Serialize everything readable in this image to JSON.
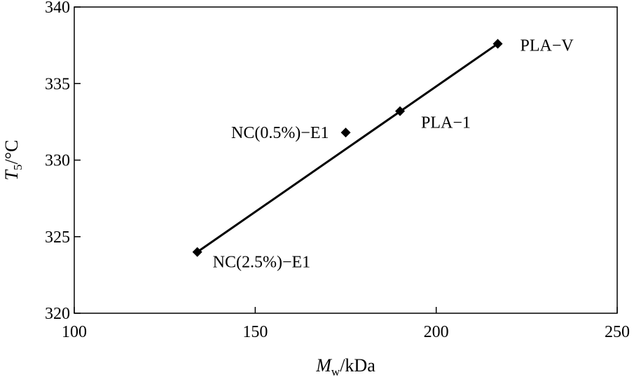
{
  "chart_data": {
    "type": "scatter",
    "title": "",
    "xlabel": {
      "main": "M",
      "sub": "w",
      "unit": "/kDa"
    },
    "ylabel": {
      "main": "T",
      "sub": "5",
      "unit": "/°C"
    },
    "xlim": [
      100,
      250
    ],
    "ylim": [
      320,
      340
    ],
    "xticks": [
      100,
      150,
      200,
      250
    ],
    "yticks": [
      320,
      325,
      330,
      335,
      340
    ],
    "grid": false,
    "legend": "none",
    "points": [
      {
        "label": "NC(2.5%)−E1",
        "x": 134,
        "y": 324.0
      },
      {
        "label": "NC(0.5%)−E1",
        "x": 175,
        "y": 331.8
      },
      {
        "label": "PLA−1",
        "x": 190,
        "y": 333.2
      },
      {
        "label": "PLA−V",
        "x": 217,
        "y": 337.6
      }
    ],
    "trendline": {
      "x": [
        134,
        217
      ],
      "y": [
        324.0,
        337.6
      ]
    }
  }
}
